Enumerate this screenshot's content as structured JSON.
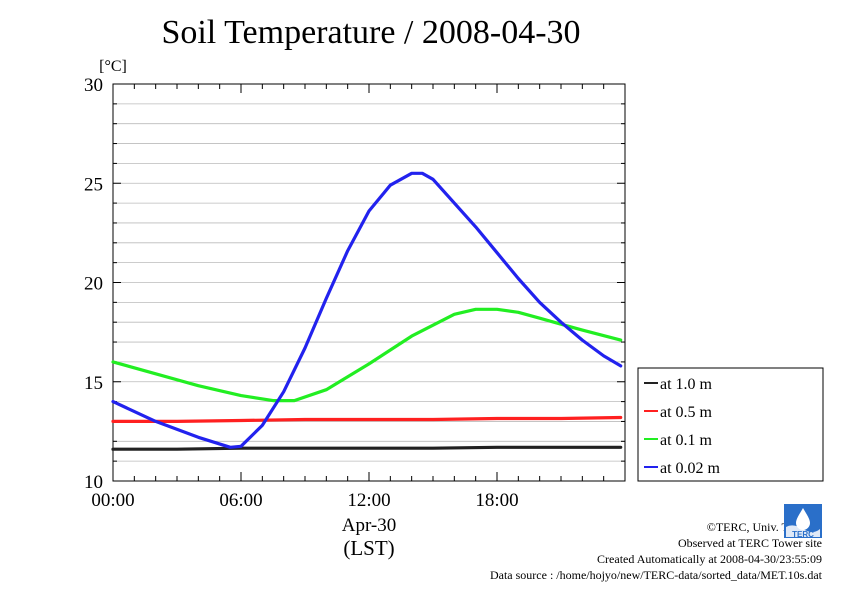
{
  "title": "Soil Temperature / 2008-04-30",
  "ylabel": "[°C]",
  "xlabel_date": "Apr-30",
  "xlabel_tz": "(LST)",
  "colors": {
    "s1": "#222222",
    "s2": "#ff2020",
    "s3": "#22ee22",
    "s4": "#2222ee"
  },
  "credits": {
    "copyright": "©TERC, Univ. Tsukuba",
    "observed": "Observed at TERC Tower site",
    "created": "Created Automatically at 2008-04-30/23:55:09",
    "source": "Data source : /home/hojyo/new/TERC-data/sorted_data/MET.10s.dat"
  },
  "logo": {
    "icon": "terc-logo",
    "text": "TERC"
  },
  "chart_data": {
    "type": "line",
    "title": "Soil Temperature / 2008-04-30",
    "ylabel": "[°C]",
    "xlabel": "Apr-30 (LST)",
    "xlim": [
      0,
      24
    ],
    "ylim": [
      10,
      30
    ],
    "xticks": [
      0,
      6,
      12,
      18
    ],
    "xtick_labels": [
      "00:00",
      "06:00",
      "12:00",
      "18:00"
    ],
    "yticks": [
      10,
      15,
      20,
      25,
      30
    ],
    "ytick_labels": [
      "10",
      "15",
      "20",
      "25",
      "30"
    ],
    "grid": true,
    "legend_position": "right",
    "series": [
      {
        "name": "at 1.0 m",
        "x": [
          0,
          3,
          6,
          9,
          12,
          15,
          18,
          21,
          23.8
        ],
        "values": [
          11.6,
          11.6,
          11.65,
          11.65,
          11.65,
          11.65,
          11.7,
          11.7,
          11.7
        ]
      },
      {
        "name": "at 0.5 m",
        "x": [
          0,
          3,
          6,
          9,
          12,
          15,
          18,
          21,
          23.8
        ],
        "values": [
          13.0,
          13.0,
          13.05,
          13.1,
          13.1,
          13.1,
          13.15,
          13.15,
          13.2
        ]
      },
      {
        "name": "at 0.1 m",
        "x": [
          0,
          2,
          4,
          6,
          7.5,
          8.5,
          10,
          12,
          14,
          16,
          17,
          18,
          19,
          20,
          21,
          22,
          23.8
        ],
        "values": [
          16.0,
          15.4,
          14.8,
          14.3,
          14.05,
          14.05,
          14.6,
          15.9,
          17.3,
          18.4,
          18.65,
          18.65,
          18.5,
          18.2,
          17.9,
          17.6,
          17.1
        ]
      },
      {
        "name": "at 0.02 m",
        "x": [
          0,
          2,
          4,
          5.5,
          6,
          7,
          8,
          9,
          10,
          11,
          12,
          13,
          14,
          14.5,
          15,
          16,
          17,
          18,
          19,
          20,
          21,
          22,
          23,
          23.8
        ],
        "values": [
          14.0,
          13.0,
          12.2,
          11.7,
          11.75,
          12.8,
          14.5,
          16.7,
          19.2,
          21.6,
          23.6,
          24.9,
          25.5,
          25.5,
          25.2,
          24.0,
          22.8,
          21.5,
          20.2,
          19.0,
          18.0,
          17.1,
          16.3,
          15.8
        ]
      }
    ]
  }
}
